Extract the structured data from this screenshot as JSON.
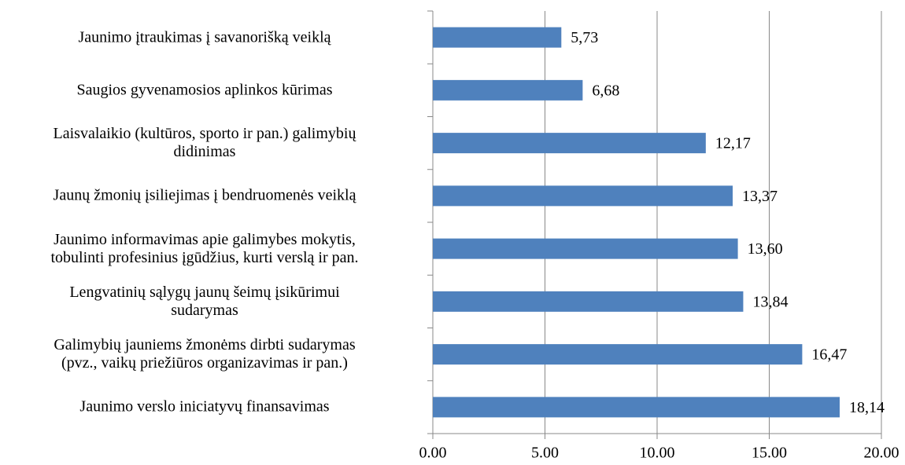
{
  "chart_data": {
    "type": "bar",
    "orientation": "horizontal",
    "categories": [
      "Jaunimo įtraukimas į savanorišką veiklą",
      "Saugios gyvenamosios aplinkos kūrimas",
      "Laisvalaikio (kultūros, sporto ir pan.) galimybių\ndidinimas",
      "Jaunų žmonių įsiliejimas į bendruomenės veiklą",
      "Jaunimo informavimas apie galimybes mokytis,\ntobulinti profesinius įgūdžius, kurti verslą ir pan.",
      "Lengvatinių sąlygų jaunų šeimų įsikūrimui\nsudarymas",
      "Galimybių jauniems žmonėms dirbti sudarymas\n(pvz., vaikų priežiūros organizavimas ir pan.)",
      "Jaunimo verslo iniciatyvų finansavimas"
    ],
    "values": [
      5.73,
      6.68,
      12.17,
      13.37,
      13.6,
      13.84,
      16.47,
      18.14
    ],
    "value_labels": [
      "5,73",
      "6,68",
      "12,17",
      "13,37",
      "13,60",
      "13,84",
      "16,47",
      "18,14"
    ],
    "color": "#4f81bd",
    "xlim": [
      0,
      20
    ],
    "xticks": [
      {
        "value": 0,
        "label": "0.00"
      },
      {
        "value": 5,
        "label": "5.00"
      },
      {
        "value": 10,
        "label": "10.00"
      },
      {
        "value": 15,
        "label": "15.00"
      },
      {
        "value": 20,
        "label": "20.00"
      }
    ],
    "grid": true
  }
}
